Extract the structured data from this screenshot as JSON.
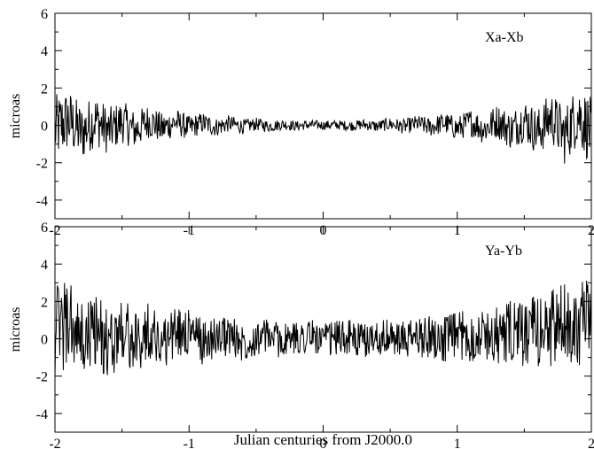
{
  "chart_data": [
    {
      "type": "line",
      "panel_label": "Xa-Xb",
      "ylabel": "microas",
      "xlabel": "",
      "xlim": [
        -2,
        2
      ],
      "ylim": [
        -5,
        6
      ],
      "xticks": [
        "-2",
        "-1",
        "0",
        "1",
        "2"
      ],
      "yticks": [
        "6",
        "4",
        "2",
        "0",
        "-2",
        "-4"
      ],
      "series": [
        {
          "x": [
            -2.0,
            -1.9,
            -1.8,
            -1.7,
            -1.6,
            -1.5,
            -1.4,
            -1.3,
            -1.2,
            -1.1,
            -1.0,
            -0.9,
            -0.8,
            -0.7,
            -0.6,
            -0.5,
            -0.4,
            -0.3,
            -0.2,
            -0.1,
            0.0,
            0.1,
            0.2,
            0.3,
            0.4,
            0.5,
            0.6,
            0.7,
            0.8,
            0.9,
            1.0,
            1.1,
            1.2,
            1.3,
            1.4,
            1.5,
            1.6,
            1.7,
            1.8,
            1.9,
            2.0
          ],
          "y": [
            -0.6,
            0.8,
            -1.2,
            0.9,
            -0.9,
            0.6,
            -0.8,
            0.7,
            -0.5,
            0.5,
            -0.4,
            0.4,
            -0.3,
            0.3,
            -0.2,
            0.2,
            -0.15,
            0.15,
            -0.1,
            0.1,
            0.0,
            0.1,
            -0.1,
            0.15,
            -0.15,
            0.2,
            -0.2,
            0.3,
            -0.3,
            0.4,
            -0.5,
            0.5,
            -0.6,
            0.7,
            -0.8,
            0.9,
            -1.1,
            1.3,
            -1.6,
            1.8,
            -1.1
          ]
        }
      ]
    },
    {
      "type": "line",
      "panel_label": "Ya-Yb",
      "ylabel": "microas",
      "xlabel": "Julian centuries from J2000.0",
      "xlim": [
        -2,
        2
      ],
      "ylim": [
        -5,
        6
      ],
      "xticks": [
        "-2",
        "-1",
        "0",
        "1",
        "2"
      ],
      "yticks": [
        "6",
        "4",
        "2",
        "0",
        "-2",
        "-4"
      ],
      "series": [
        {
          "x": [
            -2.0,
            -1.9,
            -1.8,
            -1.7,
            -1.6,
            -1.5,
            -1.4,
            -1.3,
            -1.2,
            -1.1,
            -1.0,
            -0.9,
            -0.8,
            -0.7,
            -0.6,
            -0.5,
            -0.4,
            -0.3,
            -0.2,
            -0.1,
            0.0,
            0.1,
            0.2,
            0.3,
            0.4,
            0.5,
            0.6,
            0.7,
            0.8,
            0.9,
            1.0,
            1.1,
            1.2,
            1.3,
            1.4,
            1.5,
            1.6,
            1.7,
            1.8,
            1.9,
            2.0
          ],
          "y": [
            1.2,
            2.4,
            -0.8,
            1.6,
            -1.5,
            1.8,
            -1.0,
            1.3,
            -0.6,
            0.9,
            1.2,
            -0.5,
            0.3,
            0.5,
            -0.6,
            0.2,
            0.4,
            -0.4,
            0.1,
            0.6,
            -0.3,
            0.2,
            0.3,
            -0.5,
            0.4,
            0.1,
            -0.3,
            0.2,
            0.5,
            -0.2,
            0.6,
            0.3,
            0.8,
            0.4,
            1.0,
            0.6,
            1.3,
            1.6,
            2.2,
            2.6,
            1.8
          ]
        }
      ]
    }
  ],
  "xlabel": "Julian centuries from J2000.0"
}
